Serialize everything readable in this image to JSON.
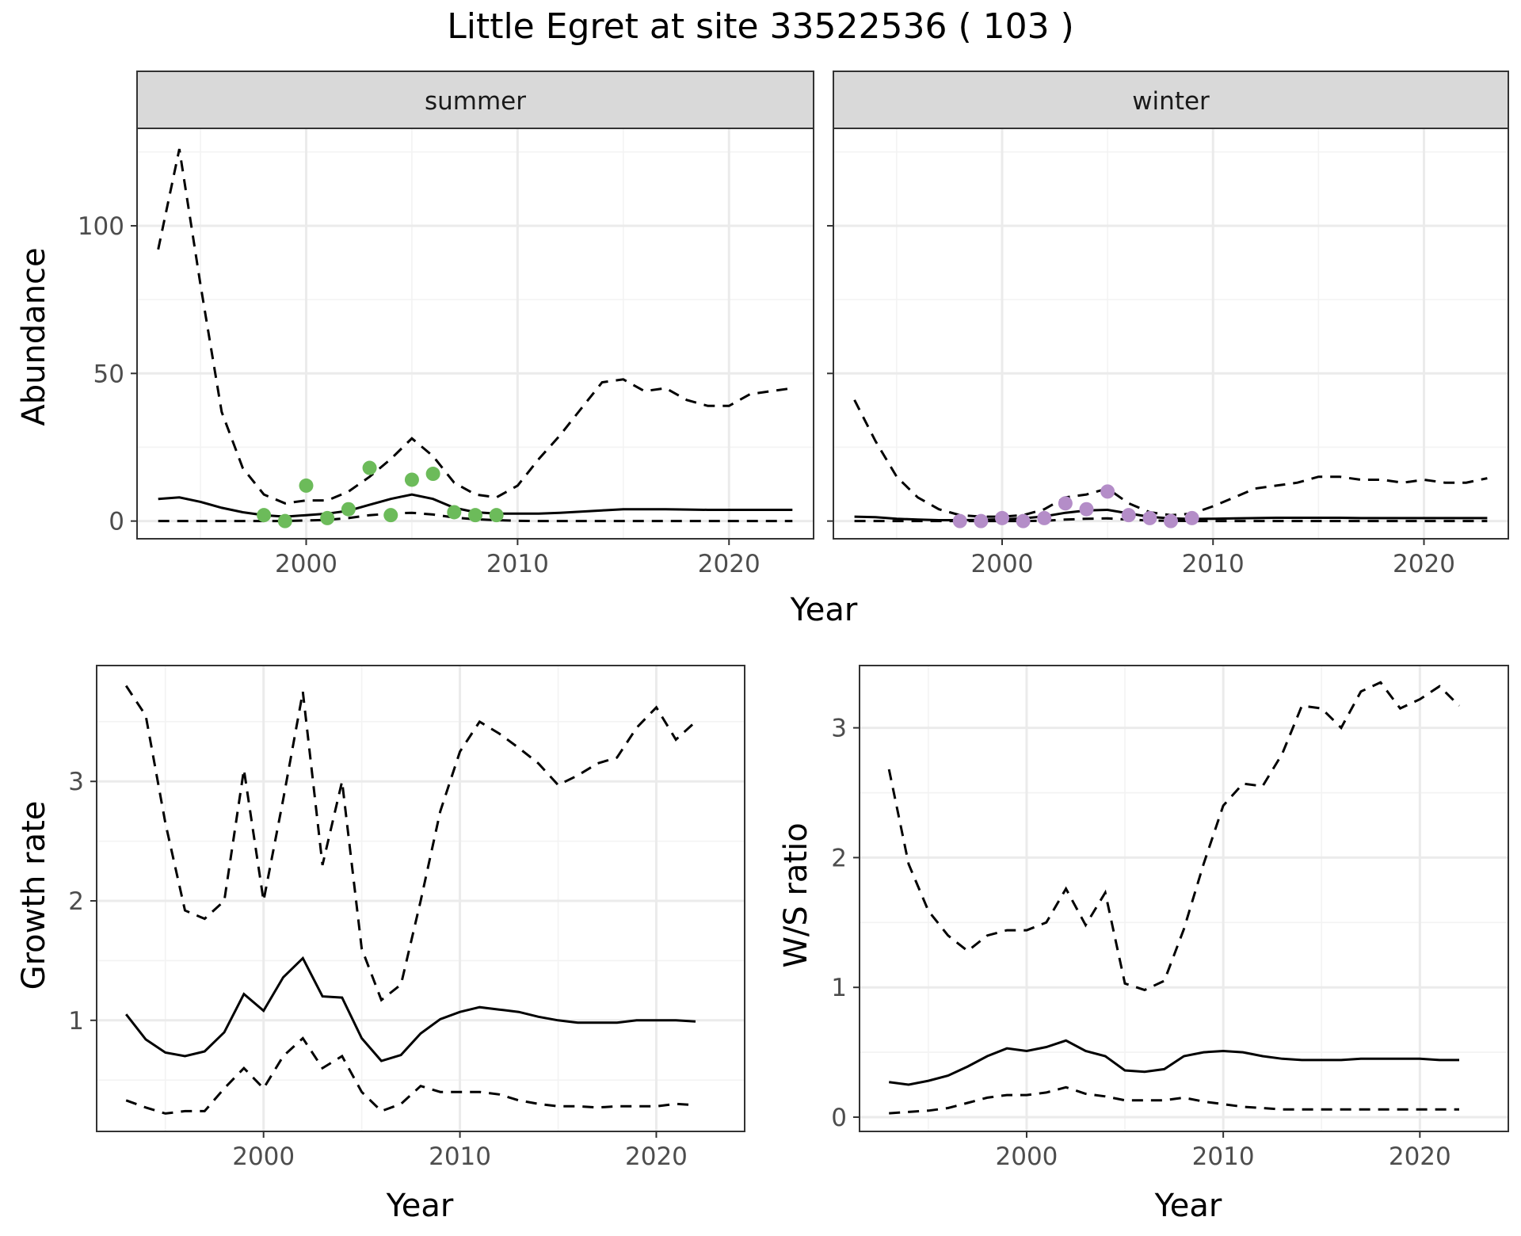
{
  "title": "Little Egret at site 33522536 ( 103 )",
  "colors": {
    "summer_points": "#6cbb5a",
    "winter_points": "#b48dc8",
    "strip_fill": "#d9d9d9"
  },
  "chart_data": [
    {
      "id": "abundance_summer",
      "type": "line",
      "facet": "summer",
      "ylabel": "Abundance",
      "xlabel": "Year",
      "xlim": [
        1992,
        2024
      ],
      "ylim": [
        -6,
        133
      ],
      "x_ticks": [
        2000,
        2010,
        2020
      ],
      "y_ticks": [
        0,
        50,
        100
      ],
      "points": {
        "x": [
          1998,
          1999,
          2000,
          2001,
          2002,
          2003,
          2004,
          2005,
          2006,
          2007,
          2008,
          2009
        ],
        "y": [
          2,
          0,
          12,
          1,
          4,
          18,
          2,
          14,
          16,
          3,
          2,
          2
        ]
      },
      "series": [
        {
          "style": "solid",
          "x": [
            1993,
            1994,
            1995,
            1996,
            1997,
            1998,
            1999,
            2000,
            2001,
            2002,
            2003,
            2004,
            2005,
            2006,
            2007,
            2008,
            2009,
            2010,
            2011,
            2012,
            2013,
            2014,
            2015,
            2016,
            2017,
            2018,
            2019,
            2020,
            2021,
            2022,
            2023
          ],
          "y": [
            7.5,
            8,
            6.5,
            4.5,
            3,
            2,
            1.5,
            2,
            2.5,
            3.5,
            5.5,
            7.5,
            9,
            7.5,
            4.5,
            3,
            2.5,
            2.5,
            2.5,
            2.8,
            3.2,
            3.6,
            4,
            4,
            4,
            3.9,
            3.8,
            3.8,
            3.8,
            3.8,
            3.8
          ]
        },
        {
          "style": "dashed",
          "x": [
            1993,
            1994,
            1995,
            1996,
            1997,
            1998,
            1999,
            2000,
            2001,
            2002,
            2003,
            2004,
            2005,
            2006,
            2007,
            2008,
            2009,
            2010,
            2011,
            2012,
            2013,
            2014,
            2015,
            2016,
            2017,
            2018,
            2019,
            2020,
            2021,
            2022,
            2023
          ],
          "y": [
            92,
            126,
            80,
            37,
            18,
            9,
            6,
            7,
            7,
            10,
            15,
            21,
            28,
            22,
            13,
            9,
            8,
            12,
            21,
            29,
            38,
            47,
            48,
            44,
            45,
            41,
            39,
            39,
            43,
            44,
            45
          ]
        },
        {
          "style": "dashed",
          "x": [
            1993,
            1994,
            1995,
            1996,
            1997,
            1998,
            1999,
            2000,
            2001,
            2002,
            2003,
            2004,
            2005,
            2006,
            2007,
            2008,
            2009,
            2010,
            2011,
            2012,
            2013,
            2014,
            2015,
            2016,
            2017,
            2018,
            2019,
            2020,
            2021,
            2022,
            2023
          ],
          "y": [
            0,
            0,
            0,
            0,
            0,
            0,
            0,
            0.2,
            0.4,
            1,
            2,
            2.5,
            2.8,
            2.2,
            1.2,
            0.6,
            0.3,
            0.1,
            0,
            0,
            0,
            0,
            0,
            0,
            0,
            0,
            0,
            0,
            0,
            0,
            0
          ]
        }
      ]
    },
    {
      "id": "abundance_winter",
      "type": "line",
      "facet": "winter",
      "xlim": [
        1992,
        2024
      ],
      "ylim": [
        -6,
        133
      ],
      "x_ticks": [
        2000,
        2010,
        2020
      ],
      "points": {
        "x": [
          1998,
          1999,
          2000,
          2001,
          2002,
          2003,
          2004,
          2005,
          2006,
          2007,
          2008,
          2009
        ],
        "y": [
          0,
          0,
          1,
          0,
          1,
          6,
          4,
          10,
          2,
          1,
          0,
          1
        ]
      },
      "series": [
        {
          "style": "solid",
          "x": [
            1993,
            1994,
            1995,
            1996,
            1997,
            1998,
            1999,
            2000,
            2001,
            2002,
            2003,
            2004,
            2005,
            2006,
            2007,
            2008,
            2009,
            2010,
            2011,
            2012,
            2013,
            2014,
            2015,
            2016,
            2017,
            2018,
            2019,
            2020,
            2021,
            2022,
            2023
          ],
          "y": [
            1.5,
            1.3,
            0.8,
            0.5,
            0.3,
            0.3,
            0.4,
            0.6,
            0.9,
            1.6,
            2.8,
            3.6,
            3.8,
            2.6,
            1.4,
            0.9,
            0.7,
            0.8,
            0.9,
            1,
            1.1,
            1.1,
            1.1,
            1.1,
            1,
            1,
            1,
            1,
            1,
            1,
            1
          ]
        },
        {
          "style": "dashed",
          "x": [
            1993,
            1994,
            1995,
            1996,
            1997,
            1998,
            1999,
            2000,
            2001,
            2002,
            2003,
            2004,
            2005,
            2006,
            2007,
            2008,
            2009,
            2010,
            2011,
            2012,
            2013,
            2014,
            2015,
            2016,
            2017,
            2018,
            2019,
            2020,
            2021,
            2022,
            2023
          ],
          "y": [
            41,
            27,
            15,
            8,
            4,
            2,
            1.5,
            1.5,
            2,
            4,
            8,
            9,
            11,
            6,
            3,
            2,
            2.5,
            5,
            8,
            11,
            12,
            13,
            15,
            15,
            14,
            14,
            13,
            14,
            13,
            13,
            14.5
          ]
        },
        {
          "style": "dashed",
          "x": [
            1993,
            1994,
            1995,
            1996,
            1997,
            1998,
            1999,
            2000,
            2001,
            2002,
            2003,
            2004,
            2005,
            2006,
            2007,
            2008,
            2009,
            2010,
            2011,
            2012,
            2013,
            2014,
            2015,
            2016,
            2017,
            2018,
            2019,
            2020,
            2021,
            2022,
            2023
          ],
          "y": [
            0,
            0,
            0,
            0,
            0,
            0,
            0,
            0,
            0,
            0.1,
            0.5,
            0.8,
            0.9,
            0.5,
            0.2,
            0.1,
            0,
            0,
            0,
            0,
            0,
            0,
            0,
            0,
            0,
            0,
            0,
            0,
            0,
            0,
            0
          ]
        }
      ]
    },
    {
      "id": "growth_rate",
      "type": "line",
      "ylabel": "Growth rate",
      "xlabel": "Year",
      "xlim": [
        1991.5,
        2024.5
      ],
      "ylim": [
        0.07,
        3.97
      ],
      "x_ticks": [
        2000,
        2010,
        2020
      ],
      "y_ticks": [
        1,
        2,
        3
      ],
      "series": [
        {
          "style": "solid",
          "x": [
            1993,
            1994,
            1995,
            1996,
            1997,
            1998,
            1999,
            2000,
            2001,
            2002,
            2003,
            2004,
            2005,
            2006,
            2007,
            2008,
            2009,
            2010,
            2011,
            2012,
            2013,
            2014,
            2015,
            2016,
            2017,
            2018,
            2019,
            2020,
            2021,
            2022
          ],
          "y": [
            1.05,
            0.84,
            0.73,
            0.7,
            0.74,
            0.9,
            1.22,
            1.08,
            1.36,
            1.52,
            1.2,
            1.19,
            0.85,
            0.66,
            0.71,
            0.89,
            1.01,
            1.07,
            1.11,
            1.09,
            1.07,
            1.03,
            1,
            0.98,
            0.98,
            0.98,
            1,
            1,
            1,
            0.99
          ]
        },
        {
          "style": "dashed",
          "x": [
            1993,
            1994,
            1995,
            1996,
            1997,
            1998,
            1999,
            2000,
            2001,
            2002,
            2003,
            2004,
            2005,
            2006,
            2007,
            2008,
            2009,
            2010,
            2011,
            2012,
            2013,
            2014,
            2015,
            2016,
            2017,
            2018,
            2019,
            2020,
            2021,
            2022
          ],
          "y": [
            3.8,
            3.55,
            2.65,
            1.92,
            1.85,
            2.0,
            3.1,
            2.0,
            2.85,
            3.75,
            2.3,
            3.0,
            1.6,
            1.17,
            1.3,
            2.0,
            2.75,
            3.25,
            3.5,
            3.4,
            3.28,
            3.15,
            2.97,
            3.05,
            3.15,
            3.2,
            3.45,
            3.62,
            3.35,
            3.5
          ]
        },
        {
          "style": "dashed",
          "x": [
            1993,
            1994,
            1995,
            1996,
            1997,
            1998,
            1999,
            2000,
            2001,
            2002,
            2003,
            2004,
            2005,
            2006,
            2007,
            2008,
            2009,
            2010,
            2011,
            2012,
            2013,
            2014,
            2015,
            2016,
            2017,
            2018,
            2019,
            2020,
            2021,
            2022
          ],
          "y": [
            0.33,
            0.27,
            0.22,
            0.24,
            0.24,
            0.43,
            0.6,
            0.43,
            0.7,
            0.85,
            0.6,
            0.7,
            0.4,
            0.24,
            0.3,
            0.45,
            0.4,
            0.4,
            0.4,
            0.38,
            0.33,
            0.3,
            0.28,
            0.28,
            0.27,
            0.28,
            0.28,
            0.28,
            0.3,
            0.29
          ]
        }
      ]
    },
    {
      "id": "ws_ratio",
      "type": "line",
      "ylabel": "W/S ratio",
      "xlabel": "Year",
      "xlim": [
        1991.5,
        2024.5
      ],
      "ylim": [
        -0.11,
        3.48
      ],
      "x_ticks": [
        2000,
        2010,
        2020
      ],
      "y_ticks": [
        0,
        1,
        2,
        3
      ],
      "series": [
        {
          "style": "solid",
          "x": [
            1993,
            1994,
            1995,
            1996,
            1997,
            1998,
            1999,
            2000,
            2001,
            2002,
            2003,
            2004,
            2005,
            2006,
            2007,
            2008,
            2009,
            2010,
            2011,
            2012,
            2013,
            2014,
            2015,
            2016,
            2017,
            2018,
            2019,
            2020,
            2021,
            2022
          ],
          "y": [
            0.27,
            0.25,
            0.28,
            0.32,
            0.39,
            0.47,
            0.53,
            0.51,
            0.54,
            0.59,
            0.51,
            0.47,
            0.36,
            0.35,
            0.37,
            0.47,
            0.5,
            0.51,
            0.5,
            0.47,
            0.45,
            0.44,
            0.44,
            0.44,
            0.45,
            0.45,
            0.45,
            0.45,
            0.44,
            0.44
          ]
        },
        {
          "style": "dashed",
          "x": [
            1993,
            1994,
            1995,
            1996,
            1997,
            1998,
            1999,
            2000,
            2001,
            2002,
            2003,
            2004,
            2005,
            2006,
            2007,
            2008,
            2009,
            2010,
            2011,
            2012,
            2013,
            2014,
            2015,
            2016,
            2017,
            2018,
            2019,
            2020,
            2021,
            2022
          ],
          "y": [
            2.68,
            1.95,
            1.59,
            1.4,
            1.28,
            1.4,
            1.44,
            1.44,
            1.5,
            1.76,
            1.48,
            1.73,
            1.03,
            0.98,
            1.05,
            1.45,
            1.95,
            2.4,
            2.57,
            2.55,
            2.8,
            3.17,
            3.15,
            3.0,
            3.28,
            3.35,
            3.15,
            3.22,
            3.32,
            3.17
          ]
        },
        {
          "style": "dashed",
          "x": [
            1993,
            1994,
            1995,
            1996,
            1997,
            1998,
            1999,
            2000,
            2001,
            2002,
            2003,
            2004,
            2005,
            2006,
            2007,
            2008,
            2009,
            2010,
            2011,
            2012,
            2013,
            2014,
            2015,
            2016,
            2017,
            2018,
            2019,
            2020,
            2021,
            2022
          ],
          "y": [
            0.03,
            0.04,
            0.05,
            0.07,
            0.11,
            0.15,
            0.17,
            0.17,
            0.19,
            0.23,
            0.18,
            0.16,
            0.13,
            0.13,
            0.13,
            0.15,
            0.12,
            0.1,
            0.08,
            0.07,
            0.06,
            0.06,
            0.06,
            0.06,
            0.06,
            0.06,
            0.06,
            0.06,
            0.06,
            0.06
          ]
        }
      ]
    }
  ],
  "strips": {
    "summer": "summer",
    "winter": "winter"
  },
  "axis_titles": {
    "top_x": "Year",
    "top_y": "Abundance",
    "bl_x": "Year",
    "bl_y": "Growth rate",
    "br_x": "Year",
    "br_y": "W/S ratio"
  }
}
